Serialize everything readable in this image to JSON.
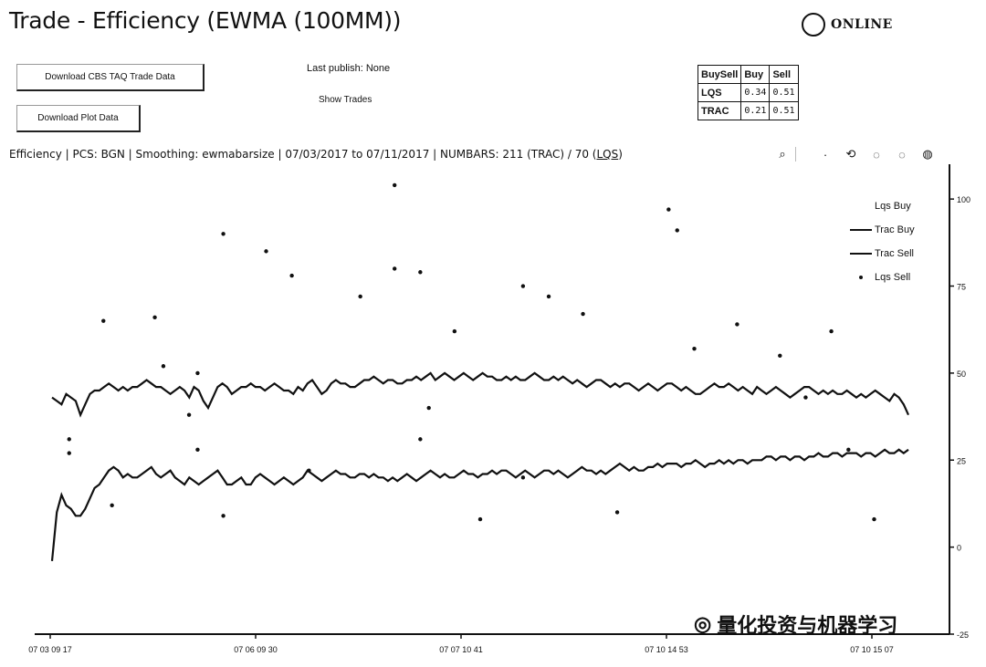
{
  "title": "Trade - Efficiency (EWMA (100MM))",
  "status": {
    "label": "ONLINE"
  },
  "buttons": {
    "download_cbs": "Download CBS TAQ Trade Data",
    "download_plot": "Download Plot Data"
  },
  "last_publish": "Last publish: None",
  "show_trades": "Show Trades",
  "buysell_table": {
    "headers": [
      "BuySell",
      "Buy",
      "Sell"
    ],
    "rows": [
      {
        "name": "LQS",
        "buy": "0.34",
        "sell": "0.51"
      },
      {
        "name": "TRAC",
        "buy": "0.21",
        "sell": "0.51"
      }
    ]
  },
  "infobar": {
    "text": "Efficiency | PCS: BGN | Smoothing: ewmabarsize | 07/03/2017 to 07/11/2017   |   NUMBARS: 211 (TRAC) / 70 (",
    "lqs_link": "LQS",
    "close": ")"
  },
  "toolbar": {
    "icons": [
      "zoom-icon",
      "pan-icon",
      "reset-icon",
      "zoom-in-icon",
      "zoom-out-icon",
      "refresh-icon"
    ],
    "glyphs": [
      "⌕",
      "·",
      "⟲",
      "◌",
      "◌",
      "◍"
    ]
  },
  "chart_data": {
    "type": "line",
    "x_tick_labels": [
      "07 03 09 17",
      "07 06 09 30",
      "07 07 10 41",
      "07 10 14 53",
      "07 10 15 07"
    ],
    "y_tick_labels": [
      "100",
      "75",
      "50",
      "25",
      "0",
      "-25"
    ],
    "ylim": [
      -25,
      110
    ],
    "legend": [
      "Lqs Buy",
      "Trac Buy",
      "Trac Sell",
      "Lqs Sell"
    ],
    "series": [
      {
        "name": "Trac Buy",
        "style": "line",
        "values": [
          43,
          42,
          41,
          44,
          43,
          42,
          38,
          41,
          44,
          45,
          45,
          46,
          47,
          46,
          45,
          46,
          45,
          46,
          46,
          47,
          48,
          47,
          46,
          46,
          45,
          44,
          45,
          46,
          45,
          43,
          46,
          45,
          42,
          40,
          43,
          46,
          47,
          46,
          44,
          45,
          46,
          46,
          47,
          46,
          46,
          45,
          46,
          47,
          46,
          45,
          45,
          44,
          46,
          45,
          47,
          48,
          46,
          44,
          45,
          47,
          48,
          47,
          47,
          46,
          46,
          47,
          48,
          48,
          49,
          48,
          47,
          48,
          48,
          47,
          47,
          48,
          48,
          49,
          48,
          49,
          50,
          48,
          49,
          50,
          49,
          48,
          49,
          50,
          49,
          48,
          49,
          50,
          49,
          49,
          48,
          48,
          49,
          48,
          49,
          48,
          48,
          49,
          50,
          49,
          48,
          48,
          49,
          48,
          49,
          48,
          47,
          48,
          47,
          46,
          47,
          48,
          48,
          47,
          46,
          47,
          46,
          47,
          47,
          46,
          45,
          46,
          47,
          46,
          45,
          46,
          47,
          47,
          46,
          45,
          46,
          45,
          44,
          44,
          45,
          46,
          47,
          46,
          46,
          47,
          46,
          45,
          46,
          45,
          44,
          46,
          45,
          44,
          45,
          46,
          45,
          44,
          43,
          44,
          45,
          46,
          46,
          45,
          44,
          45,
          44,
          45,
          44,
          44,
          45,
          44,
          43,
          44,
          43,
          44,
          45,
          44,
          43,
          42,
          44,
          43,
          41,
          38
        ]
      },
      {
        "name": "Trac Sell",
        "style": "line",
        "values": [
          -4,
          10,
          15,
          12,
          11,
          9,
          9,
          11,
          14,
          17,
          18,
          20,
          22,
          23,
          22,
          20,
          21,
          20,
          20,
          21,
          22,
          23,
          21,
          20,
          21,
          22,
          20,
          19,
          18,
          20,
          19,
          18,
          19,
          20,
          21,
          22,
          20,
          18,
          18,
          19,
          20,
          18,
          18,
          20,
          21,
          20,
          19,
          18,
          19,
          20,
          19,
          18,
          19,
          20,
          22,
          21,
          20,
          19,
          20,
          21,
          22,
          21,
          21,
          20,
          20,
          21,
          21,
          20,
          21,
          20,
          20,
          19,
          20,
          19,
          20,
          21,
          20,
          19,
          20,
          21,
          22,
          21,
          20,
          21,
          20,
          20,
          21,
          22,
          21,
          21,
          20,
          21,
          21,
          22,
          21,
          22,
          22,
          21,
          20,
          21,
          22,
          21,
          20,
          21,
          22,
          22,
          21,
          22,
          21,
          20,
          21,
          22,
          23,
          22,
          22,
          21,
          22,
          21,
          22,
          23,
          24,
          23,
          22,
          23,
          22,
          22,
          23,
          23,
          24,
          23,
          24,
          24,
          24,
          23,
          24,
          24,
          25,
          24,
          23,
          24,
          24,
          25,
          24,
          25,
          24,
          25,
          25,
          24,
          25,
          25,
          25,
          26,
          26,
          25,
          26,
          26,
          25,
          26,
          26,
          25,
          26,
          26,
          27,
          26,
          26,
          27,
          27,
          26,
          27,
          27,
          27,
          26,
          27,
          27,
          26,
          27,
          28,
          27,
          27,
          28,
          27,
          28
        ]
      },
      {
        "name": "Lqs Buy / Lqs Sell",
        "style": "markers",
        "points": [
          [
            0.02,
            31
          ],
          [
            0.02,
            27
          ],
          [
            0.06,
            65
          ],
          [
            0.07,
            12
          ],
          [
            0.12,
            66
          ],
          [
            0.13,
            52
          ],
          [
            0.16,
            38
          ],
          [
            0.17,
            50
          ],
          [
            0.17,
            28
          ],
          [
            0.2,
            90
          ],
          [
            0.2,
            9
          ],
          [
            0.25,
            85
          ],
          [
            0.28,
            78
          ],
          [
            0.3,
            22
          ],
          [
            0.36,
            72
          ],
          [
            0.4,
            104
          ],
          [
            0.4,
            80
          ],
          [
            0.43,
            79
          ],
          [
            0.43,
            31
          ],
          [
            0.44,
            40
          ],
          [
            0.47,
            62
          ],
          [
            0.5,
            8
          ],
          [
            0.55,
            75
          ],
          [
            0.55,
            20
          ],
          [
            0.58,
            72
          ],
          [
            0.62,
            67
          ],
          [
            0.66,
            10
          ],
          [
            0.72,
            97
          ],
          [
            0.73,
            91
          ],
          [
            0.75,
            57
          ],
          [
            0.8,
            64
          ],
          [
            0.85,
            55
          ],
          [
            0.88,
            43
          ],
          [
            0.91,
            62
          ],
          [
            0.93,
            28
          ],
          [
            0.96,
            8
          ]
        ]
      }
    ]
  },
  "watermark": "量化投资与机器学习"
}
